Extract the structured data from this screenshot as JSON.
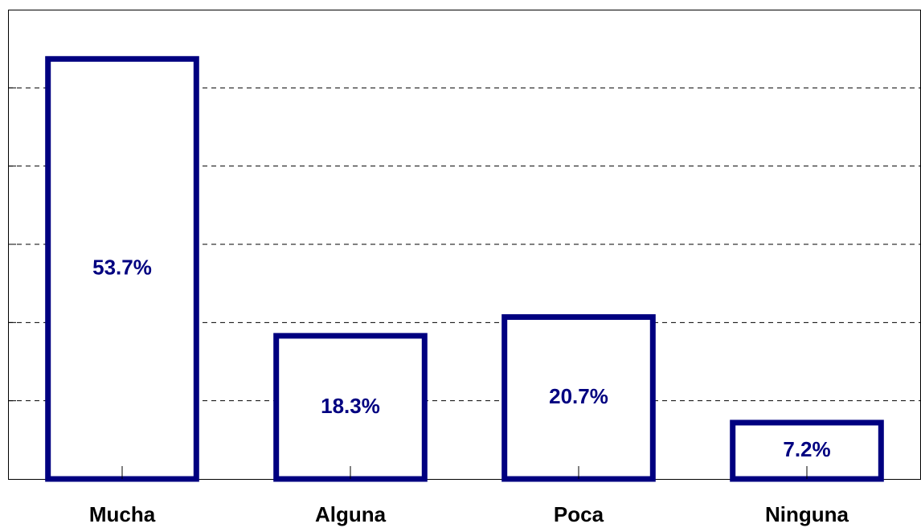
{
  "chart_data": {
    "type": "bar",
    "categories": [
      "Mucha",
      "Alguna",
      "Poca",
      "Ninguna"
    ],
    "values": [
      53.7,
      18.3,
      20.7,
      7.2
    ],
    "value_labels": [
      "53.7%",
      "18.3%",
      "20.7%",
      "7.2%"
    ],
    "color": "#000080",
    "ylim": [
      0,
      60
    ],
    "yticks": [
      10,
      20,
      30,
      40,
      50
    ],
    "grid": true
  }
}
